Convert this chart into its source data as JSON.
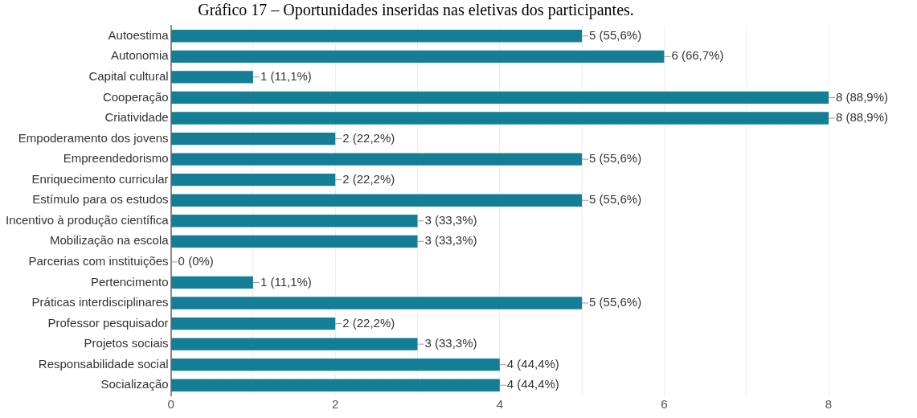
{
  "chart_data": {
    "type": "bar",
    "orientation": "horizontal",
    "title": "Gráfico 17 – Oportunidades inseridas nas eletivas dos participantes.",
    "categories": [
      "Autoestima",
      "Autonomia",
      "Capital cultural",
      "Cooperação",
      "Criatividade",
      "Empoderamento dos jovens",
      "Empreendedorismo",
      "Enriquecimento curricular",
      "Estímulo para os estudos",
      "Incentivo à produção científica",
      "Mobilização na escola",
      "Parcerias com instituições",
      "Pertencimento",
      "Práticas interdisciplinares",
      "Professor pesquisador",
      "Projetos sociais",
      "Responsabilidade social",
      "Socialização"
    ],
    "values": [
      5,
      6,
      1,
      8,
      8,
      2,
      5,
      2,
      5,
      3,
      3,
      0,
      1,
      5,
      2,
      3,
      4,
      4
    ],
    "value_labels": [
      "5 (55,6%)",
      "6 (66,7%)",
      "1 (11,1%)",
      "8 (88,9%)",
      "8 (88,9%)",
      "2 (22,2%)",
      "5 (55,6%)",
      "2 (22,2%)",
      "5 (55,6%)",
      "3 (33,3%)",
      "3 (33,3%)",
      "0 (0%)",
      "1 (11,1%)",
      "5 (55,6%)",
      "2 (22,2%)",
      "3 (33,3%)",
      "4 (44,4%)",
      "4 (44,4%)"
    ],
    "color": "#137e96",
    "xlim": [
      0,
      8
    ],
    "xticks": [
      0,
      {
        "value": 1,
        "label": null
      },
      2,
      {
        "value": 3,
        "label": null
      },
      4,
      {
        "value": 5,
        "label": null
      },
      6,
      {
        "value": 7,
        "label": null
      },
      8
    ],
    "grid": "x",
    "legend": false
  }
}
